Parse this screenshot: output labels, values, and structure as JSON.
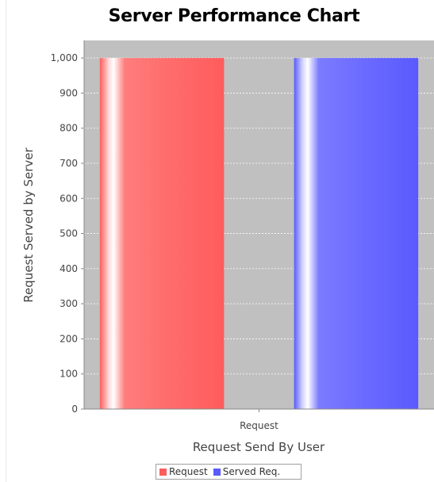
{
  "chart_data": {
    "type": "bar",
    "title": "Server Performance Chart",
    "xlabel": "Request Send By User",
    "ylabel": "Request Served by Server",
    "categories": [
      "Request"
    ],
    "series": [
      {
        "name": "Request",
        "values": [
          1000
        ],
        "color": "#ff5c5c"
      },
      {
        "name": "Served Req.",
        "values": [
          1000
        ],
        "color": "#5a5aff"
      }
    ],
    "ylim": [
      0,
      1050
    ],
    "yticks": [
      0,
      100,
      200,
      300,
      400,
      500,
      600,
      700,
      800,
      900,
      1000
    ],
    "ytick_labels": [
      "0",
      "100",
      "200",
      "300",
      "400",
      "500",
      "600",
      "700",
      "800",
      "900",
      "1,000"
    ],
    "grid": true,
    "plot_background": "#c0c0c0",
    "legend": "bottom"
  }
}
